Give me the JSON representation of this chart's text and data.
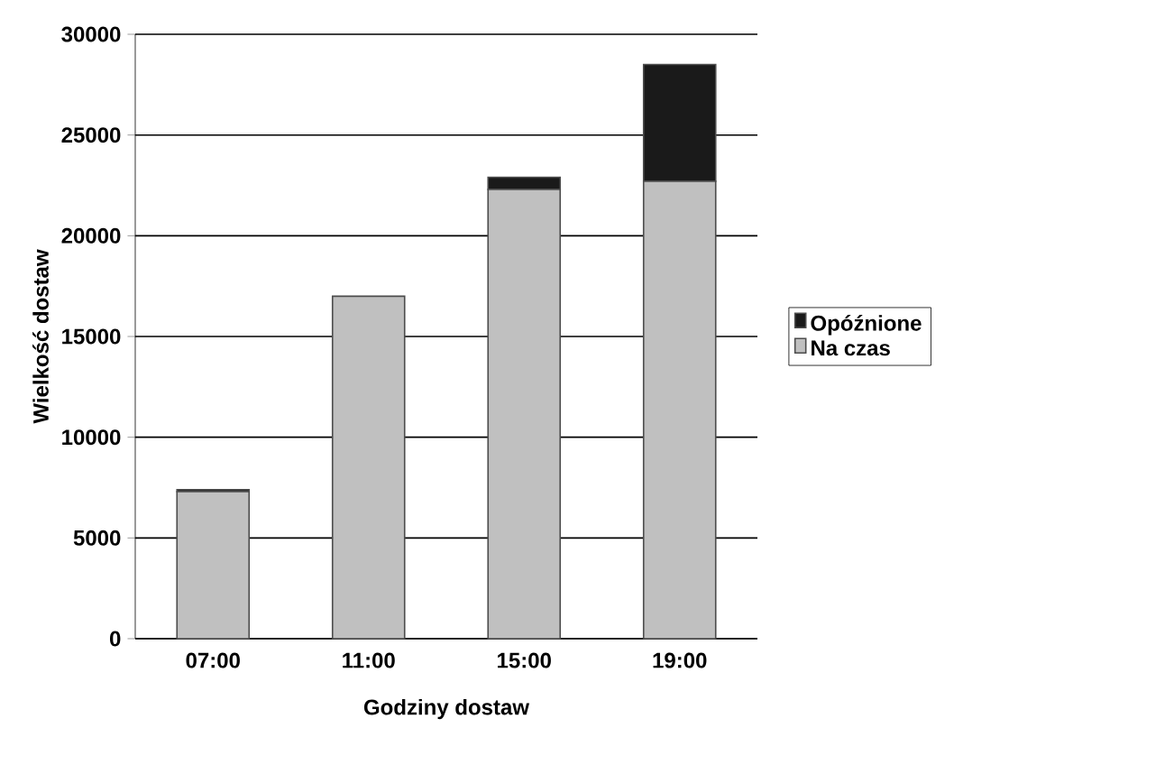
{
  "chart_data": {
    "type": "bar",
    "stacked": true,
    "xlabel": "Godziny dostaw",
    "ylabel": "Wielkość dostaw",
    "categories": [
      "07:00",
      "11:00",
      "15:00",
      "19:00"
    ],
    "series": [
      {
        "name": "Na czas",
        "color": "#c0c0c0",
        "values": [
          7300,
          17000,
          22300,
          22700
        ]
      },
      {
        "name": "Opóźnione",
        "color": "#1a1a1a",
        "values": [
          100,
          0,
          600,
          5800
        ]
      }
    ],
    "ylim": [
      0,
      30000
    ],
    "yticks": [
      0,
      5000,
      10000,
      15000,
      20000,
      25000,
      30000
    ],
    "grid": "y",
    "legend": "right"
  }
}
